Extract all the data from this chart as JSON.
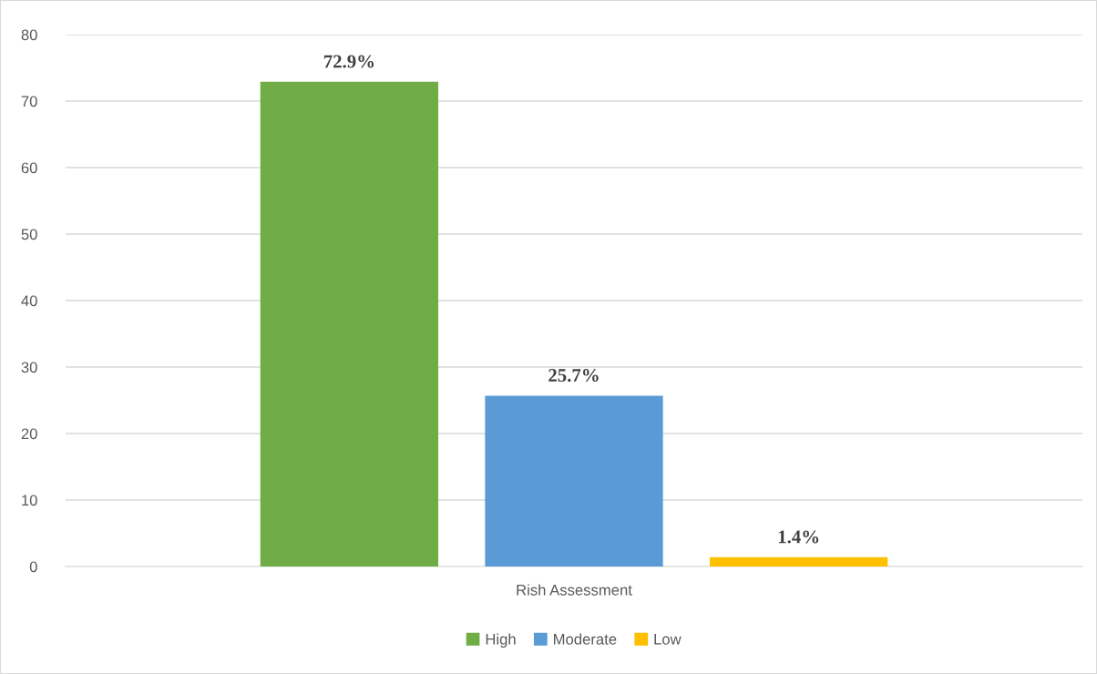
{
  "chart_data": {
    "type": "bar",
    "categories": [
      "Rish Assessment"
    ],
    "series": [
      {
        "name": "High",
        "color": "#70ad47",
        "values": [
          72.9
        ],
        "value_labels": [
          "72.9%"
        ]
      },
      {
        "name": "Moderate",
        "color": "#5b9bd5",
        "values": [
          25.7
        ],
        "value_labels": [
          "25.7%"
        ]
      },
      {
        "name": "Low",
        "color": "#ffc000",
        "values": [
          1.4
        ],
        "value_labels": [
          "1.4%"
        ]
      }
    ],
    "ylim": [
      0,
      80
    ],
    "yticks": [
      0,
      10,
      20,
      30,
      40,
      50,
      60,
      70,
      80
    ],
    "grid": "y",
    "legend": "bottom"
  }
}
